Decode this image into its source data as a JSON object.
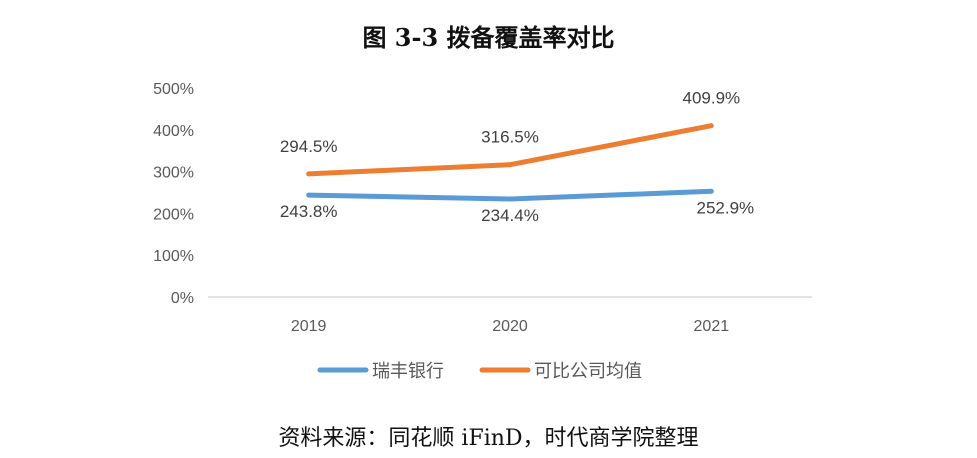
{
  "chart_data": {
    "type": "line",
    "title": "图 3-3 拨备覆盖率对比",
    "categories": [
      "2019",
      "2020",
      "2021"
    ],
    "ylim": [
      0,
      500
    ],
    "yticks": [
      "0%",
      "100%",
      "200%",
      "300%",
      "400%",
      "500%"
    ],
    "grid": false,
    "legend": "bottom",
    "series": [
      {
        "name": "瑞丰银行",
        "color": "#5B9BD5",
        "values": [
          243.8,
          234.4,
          252.9
        ],
        "labels": [
          "243.8%",
          "234.4%",
          "252.9%"
        ]
      },
      {
        "name": "可比公司均值",
        "color": "#ED7D31",
        "values": [
          294.5,
          316.5,
          409.9
        ],
        "labels": [
          "294.5%",
          "316.5%",
          "409.9%"
        ]
      }
    ]
  },
  "source": "资料来源：同花顺 iFinD，时代商学院整理"
}
